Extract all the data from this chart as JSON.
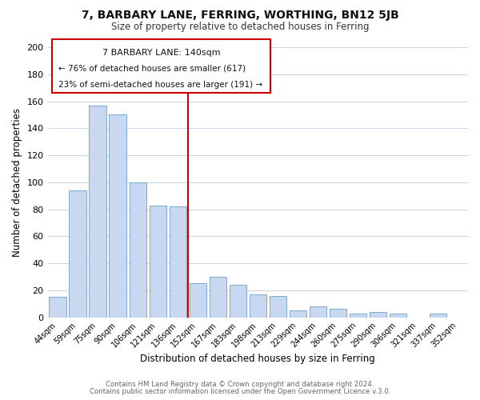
{
  "title": "7, BARBARY LANE, FERRING, WORTHING, BN12 5JB",
  "subtitle": "Size of property relative to detached houses in Ferring",
  "xlabel": "Distribution of detached houses by size in Ferring",
  "ylabel": "Number of detached properties",
  "categories": [
    "44sqm",
    "59sqm",
    "75sqm",
    "90sqm",
    "106sqm",
    "121sqm",
    "136sqm",
    "152sqm",
    "167sqm",
    "183sqm",
    "198sqm",
    "213sqm",
    "229sqm",
    "244sqm",
    "260sqm",
    "275sqm",
    "290sqm",
    "306sqm",
    "321sqm",
    "337sqm",
    "352sqm"
  ],
  "values": [
    15,
    94,
    157,
    150,
    100,
    83,
    82,
    25,
    30,
    24,
    17,
    16,
    5,
    8,
    6,
    3,
    4,
    3,
    0,
    3,
    0
  ],
  "bar_color": "#c8d8f0",
  "bar_edge_color": "#7aaad0",
  "highlight_color": "#cc0000",
  "ylim": [
    0,
    200
  ],
  "yticks": [
    0,
    20,
    40,
    60,
    80,
    100,
    120,
    140,
    160,
    180,
    200
  ],
  "annotation_title": "7 BARBARY LANE: 140sqm",
  "annotation_line1": "← 76% of detached houses are smaller (617)",
  "annotation_line2": "23% of semi-detached houses are larger (191) →",
  "footer_line1": "Contains HM Land Registry data © Crown copyright and database right 2024.",
  "footer_line2": "Contains public sector information licensed under the Open Government Licence v.3.0.",
  "background_color": "#ffffff",
  "grid_color": "#c8d4e8"
}
